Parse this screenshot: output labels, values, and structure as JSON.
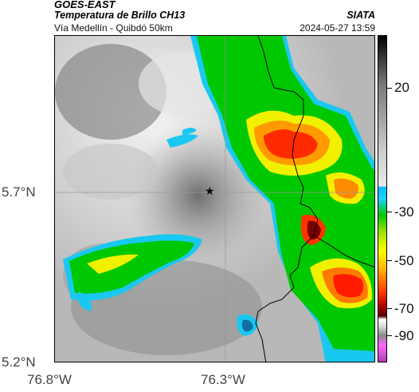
{
  "header": {
    "title_line1": "GOES-EAST",
    "title_line2": "Temperatura de Brillo CH13",
    "subtitle": "Vía Medellín - Quibdó 50km",
    "organization": "SIATA",
    "timestamp": "2024-05-27 13:59"
  },
  "axes": {
    "y_labels": [
      "5.7°N",
      "5.2°N"
    ],
    "x_labels": [
      "76.8°W",
      "76.3°W"
    ]
  },
  "colorbar": {
    "labels": [
      "20",
      "-30",
      "-50",
      "-70",
      "-90"
    ]
  },
  "colors": {
    "cold_red": "#ff2a00",
    "yellow": "#f0f000",
    "green": "#00c800",
    "cyan": "#19c8f0",
    "gray_bg": "#9a9a9a"
  },
  "icons": {
    "marker": "star-icon"
  }
}
